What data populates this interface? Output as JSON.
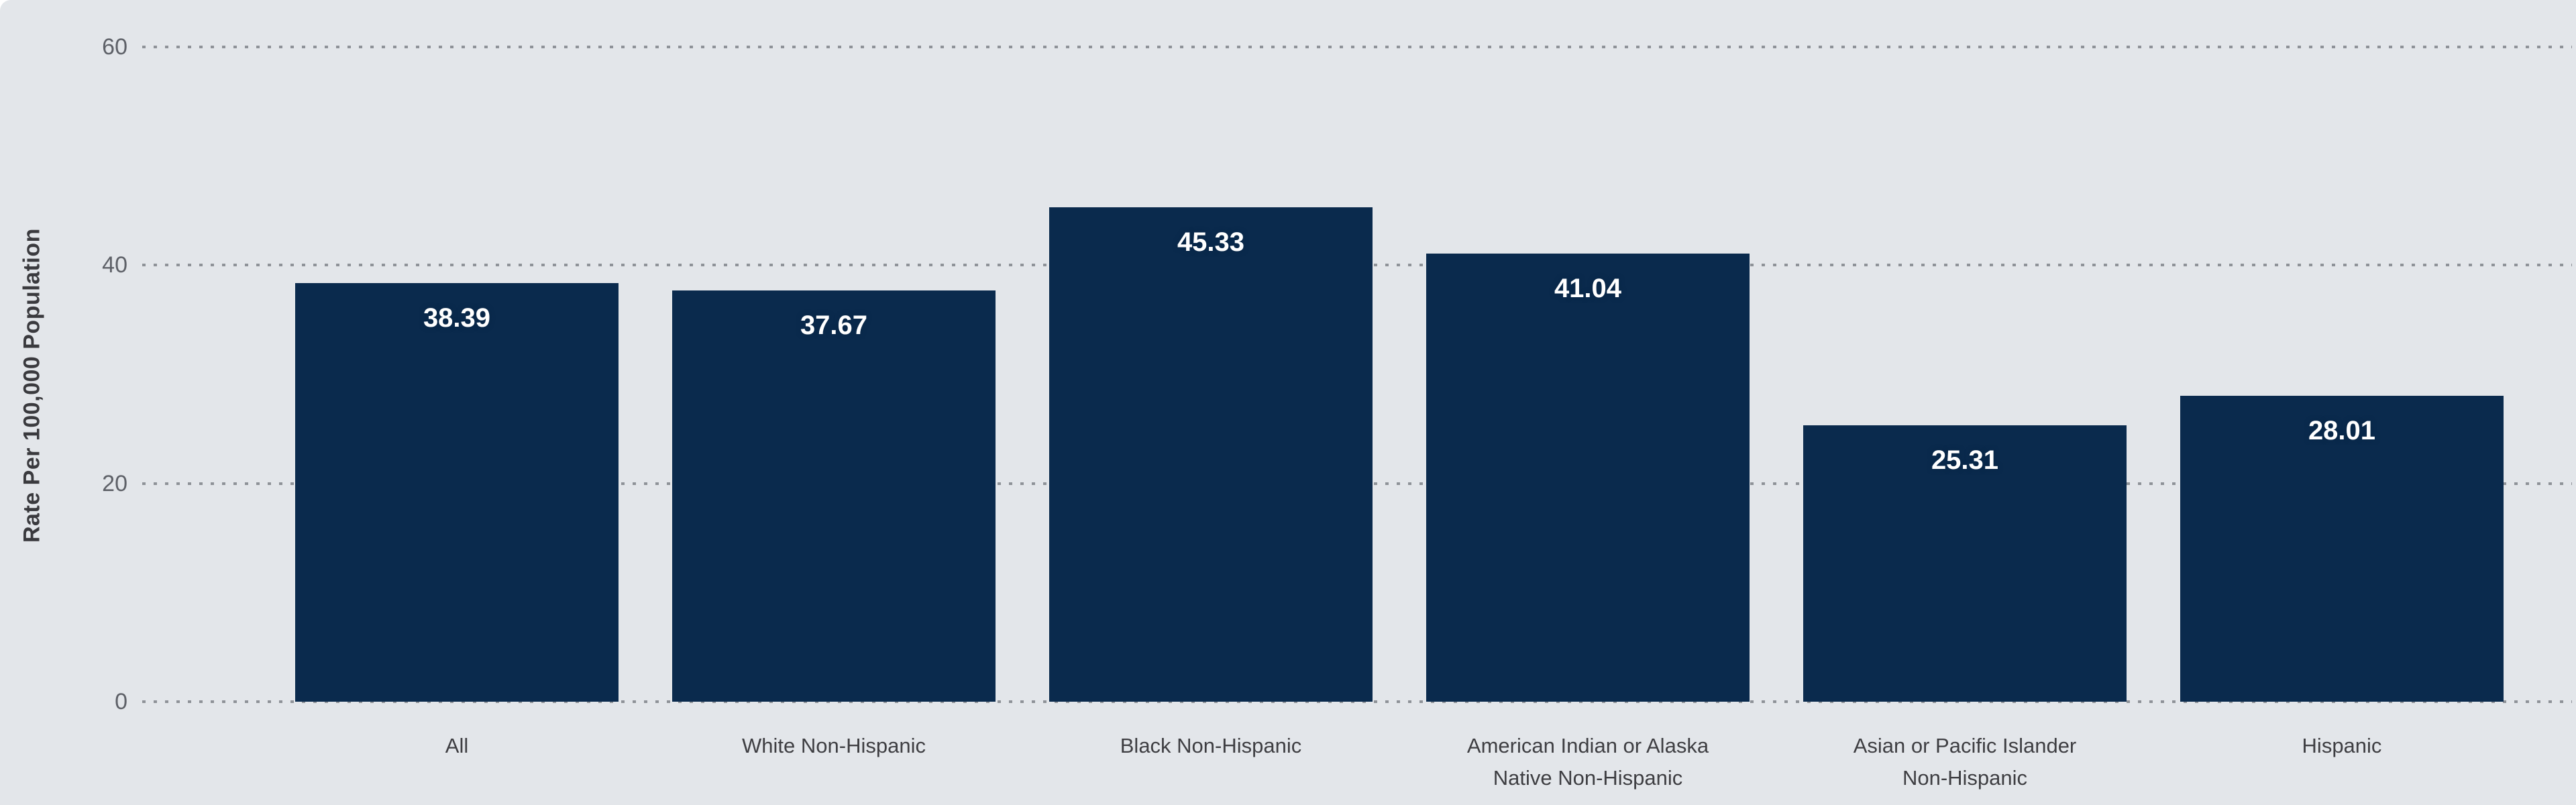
{
  "chart_data": {
    "type": "bar",
    "title": "",
    "ylabel": "Rate Per 100,000 Population",
    "xlabel": "",
    "categories": [
      "All",
      "White Non-Hispanic",
      "Black Non-Hispanic",
      "American Indian or Alaska\nNative Non-Hispanic",
      "Asian or Pacific Islander\nNon-Hispanic",
      "Hispanic"
    ],
    "values": [
      38.39,
      37.67,
      45.33,
      41.04,
      25.31,
      28.01
    ],
    "value_labels": [
      "38.39",
      "37.67",
      "45.33",
      "41.04",
      "25.31",
      "28.01"
    ],
    "yticks": [
      0,
      20,
      40,
      60
    ],
    "ytick_labels": [
      "0",
      "20",
      "40",
      "60"
    ],
    "ylim": [
      0,
      60
    ],
    "grid": "horizontal-dotted",
    "legend": "none",
    "colors": {
      "bar": "#0a2a4d",
      "background": "#e3e6ea",
      "value_label": "#ffffff",
      "tick_label": "#5d6067",
      "category_label": "#3e3e42",
      "gridline": "#8e9298"
    }
  }
}
